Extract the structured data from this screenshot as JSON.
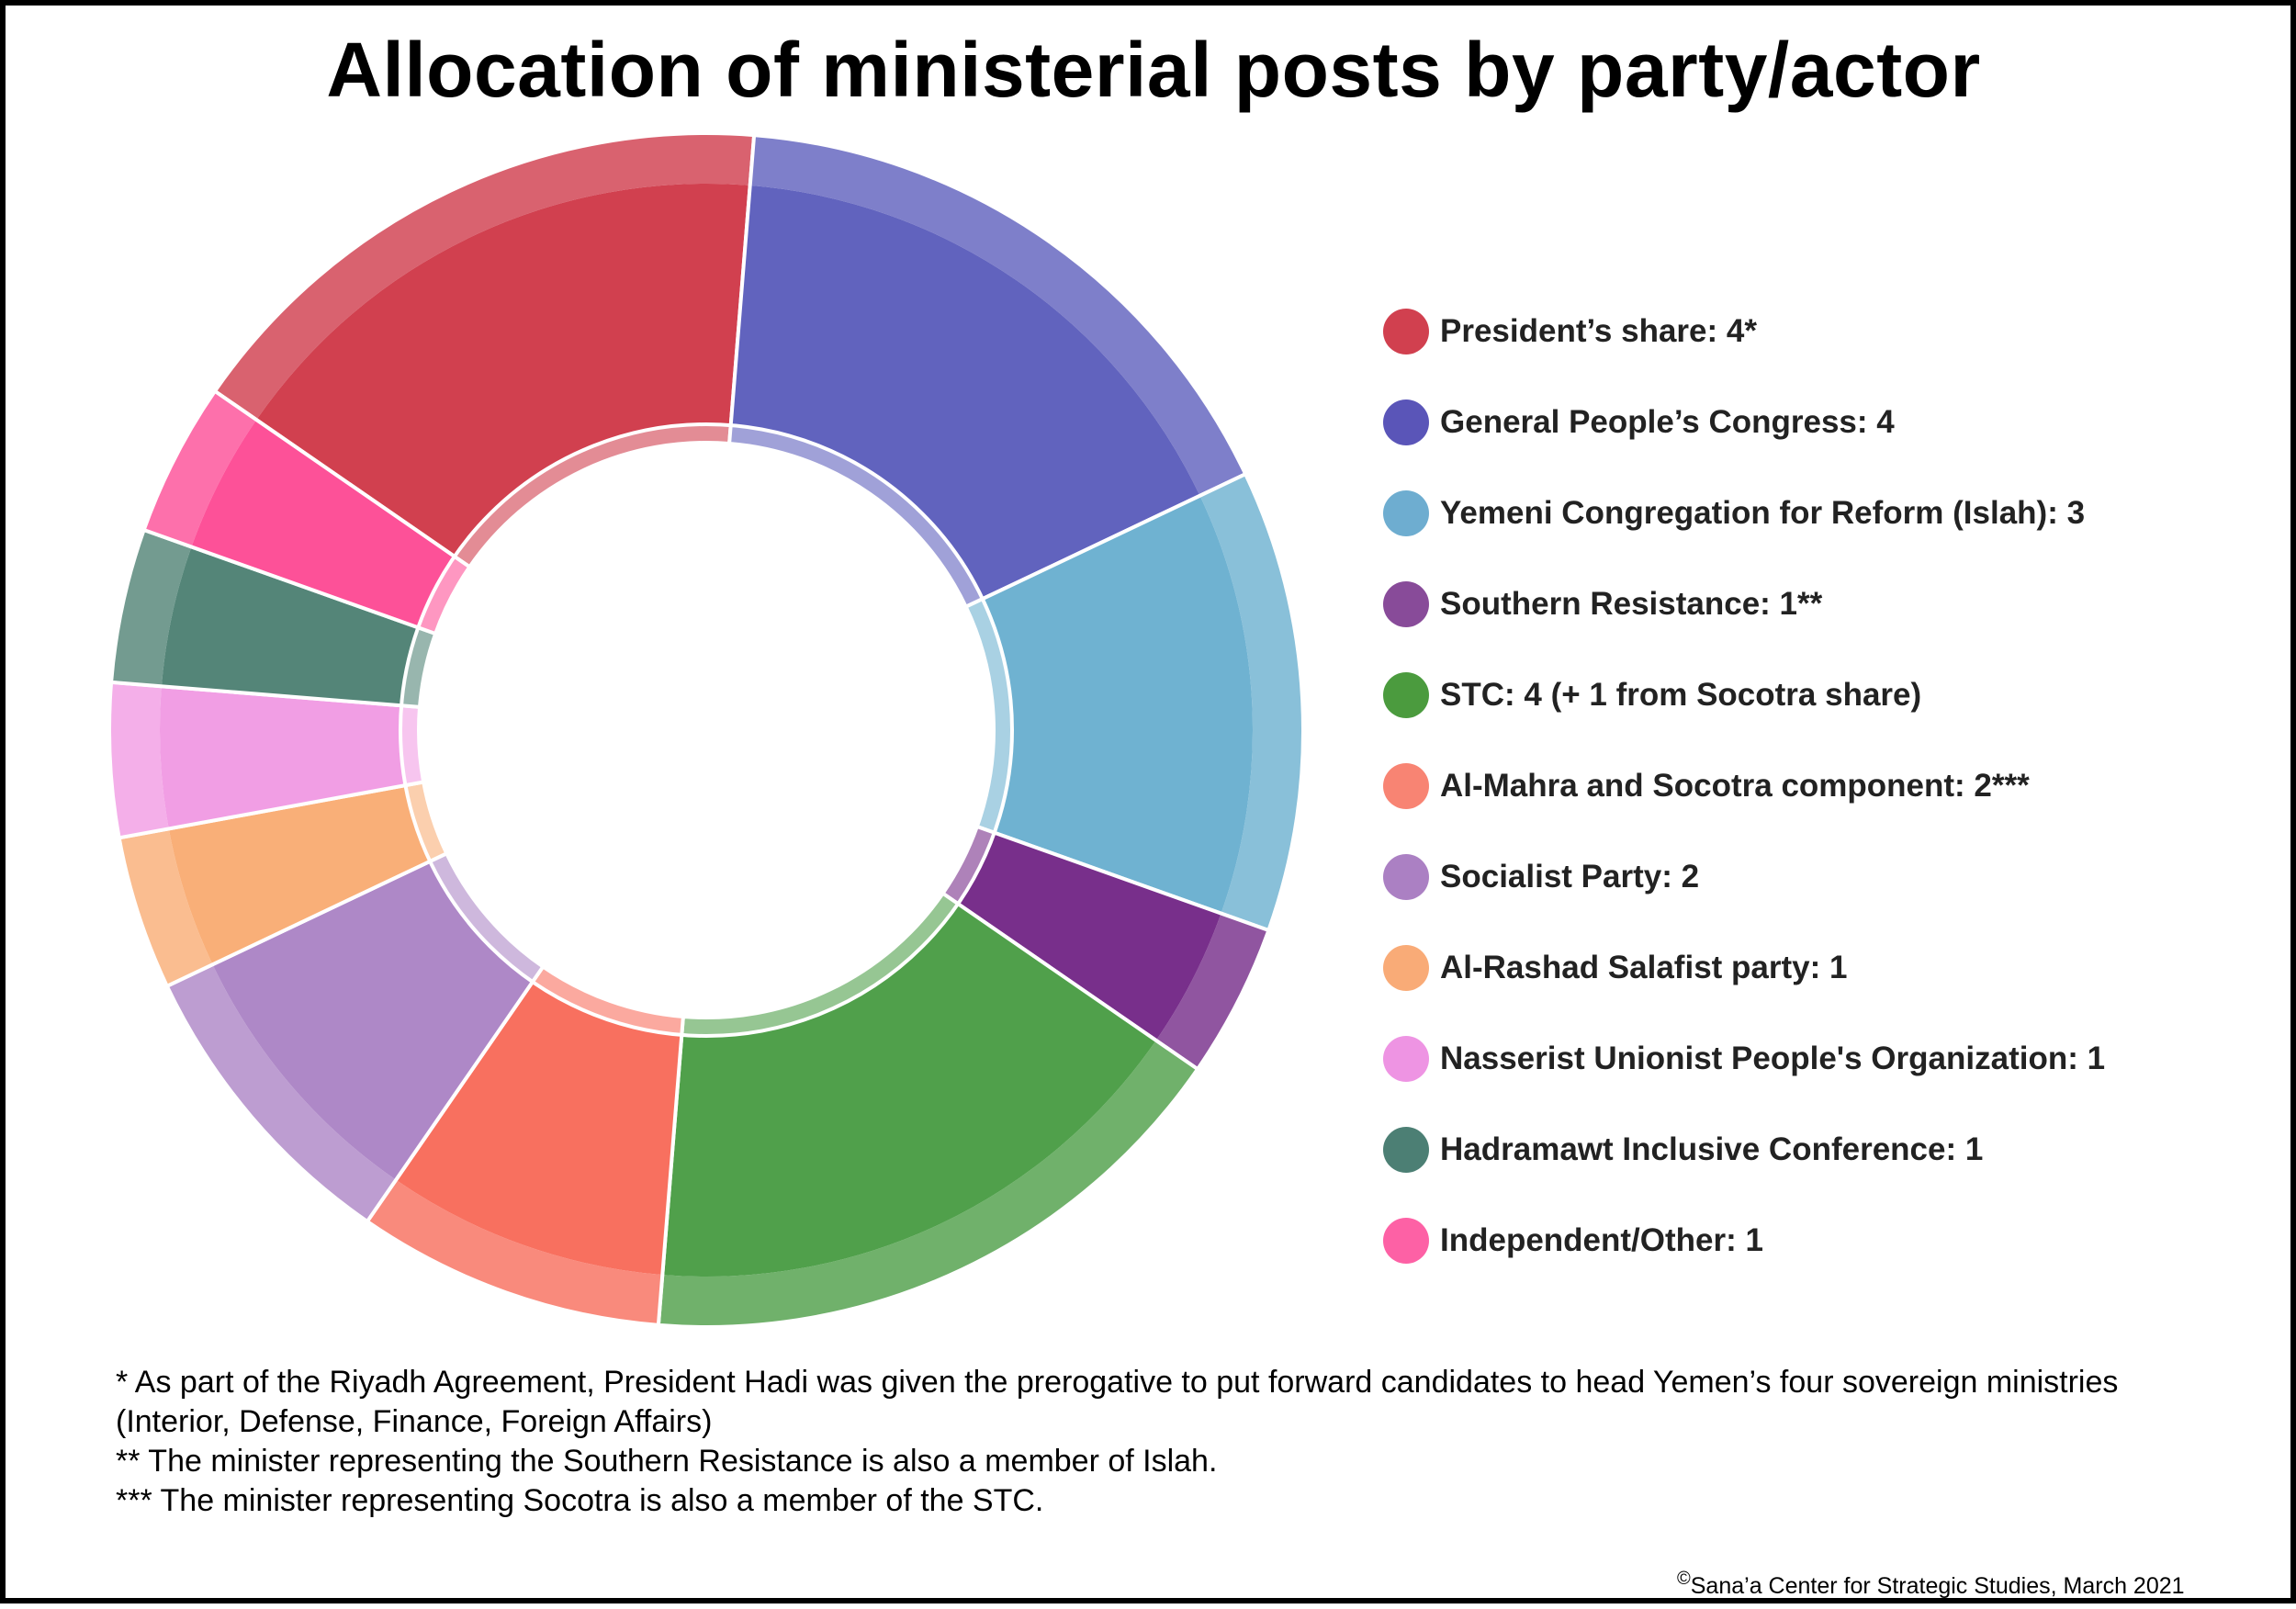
{
  "title": "Allocation of ministerial posts by party/actor",
  "chart_data": {
    "type": "pie",
    "title": "Allocation of ministerial posts by party/actor",
    "categories": [
      "President’s share",
      "General People’s Congress",
      "Yemeni Congregation for Reform (Islah)",
      "Southern Resistance",
      "STC",
      "Al-Mahra and Socotra component",
      "Socialist Party",
      "Al-Rashad Salafist party",
      "Nasserist Unionist People's Organization",
      "Hadramawt Inclusive Conference",
      "Independent/Other"
    ],
    "values": [
      4,
      4,
      3,
      1,
      4,
      2,
      2,
      1,
      1,
      1,
      1
    ],
    "colors": [
      "#d1404f",
      "#6163be",
      "#6fb2d1",
      "#782f8b",
      "#50a04b",
      "#f8705f",
      "#ae88c7",
      "#f9af78",
      "#f19ee4",
      "#548578",
      "#fd5198"
    ],
    "legend_placement": "right"
  },
  "legend": {
    "items": [
      {
        "label": "President’s share: 4*",
        "color": "#d1404f"
      },
      {
        "label": "General People’s Congress: 4",
        "color": "#5a55b8"
      },
      {
        "label": "Yemeni Congregation for Reform (Islah): 3",
        "color": "#6eadd0"
      },
      {
        "label": "Southern Resistance: 1**",
        "color": "#884b99"
      },
      {
        "label": "STC: 4 (+ 1 from Socotra share)",
        "color": "#4b9b3e"
      },
      {
        "label": "Al-Mahra and Socotra component: 2***",
        "color": "#f88473"
      },
      {
        "label": "Socialist Party: 2",
        "color": "#ab80c3"
      },
      {
        "label": "Al-Rashad Salafist party: 1",
        "color": "#f9ab77"
      },
      {
        "label": "Nasserist Unionist People's Organization: 1",
        "color": "#ee94e3"
      },
      {
        "label": "Hadramawt Inclusive Conference: 1",
        "color": "#4c7f74"
      },
      {
        "label": "Independent/Other: 1",
        "color": "#fd61a5"
      }
    ]
  },
  "notes": [
    "* As part of the Riyadh Agreement, President Hadi was given the prerogative to put forward candidates to head Yemen’s four sovereign ministries (Interior, Defense, Finance, Foreign Affairs)",
    "** The minister representing the Southern Resistance is also a member of Islah.",
    "*** The minister representing Socotra is also a member of the STC."
  ],
  "credit": {
    "symbol": "©",
    "text": "Sana’a Center for Strategic Studies, March 2021"
  }
}
